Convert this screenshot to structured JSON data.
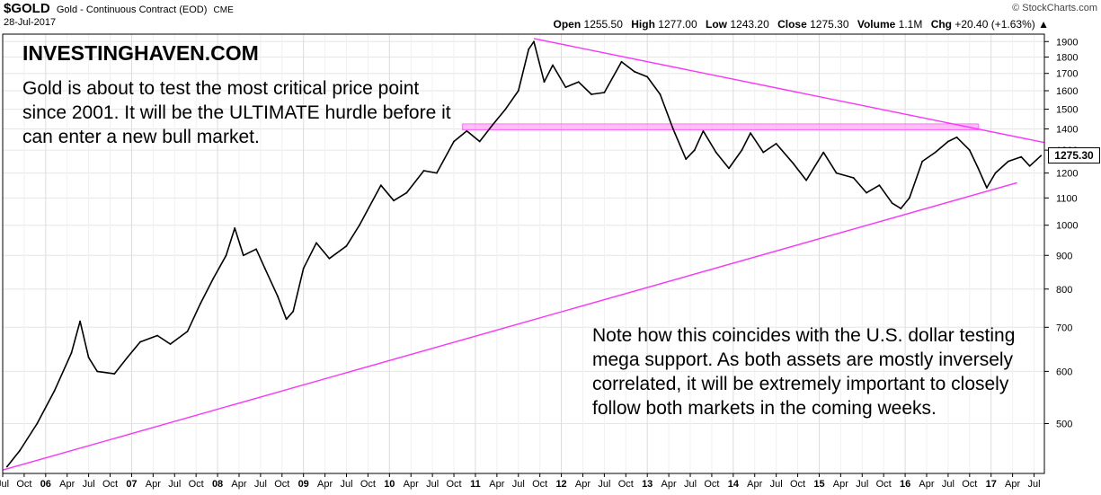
{
  "header": {
    "symbol": "$GOLD",
    "description": "Gold - Continuous Contract (EOD)",
    "exchange": "CME",
    "date": "28-Jul-2017",
    "brand": "© StockCharts.com",
    "open_label": "Open",
    "open": "1255.50",
    "high_label": "High",
    "high": "1277.00",
    "low_label": "Low",
    "low": "1243.20",
    "close_label": "Close",
    "close": "1275.30",
    "volume_label": "Volume",
    "volume": "1.1M",
    "chg_label": "Chg",
    "chg": "+20.40 (+1.63%)",
    "chg_arrow": "▲"
  },
  "annotations": {
    "site": "INVESTINGHAVEN.COM",
    "note1": "Gold is about to test the most critical price point since 2001. It will be the ULTIMATE hurdle before it can enter a new bull market.",
    "note2": "Note how this coincides with the U.S. dollar testing mega support. As both assets are mostly inversely correlated, it will be extremely important to closely follow both markets in the coming weeks."
  },
  "chart_data": {
    "type": "line",
    "title": "",
    "xlabel": "",
    "ylabel": "",
    "ylim": [
      420,
      1950
    ],
    "y_scale": "log",
    "xlim": [
      2005.5,
      2017.62
    ],
    "y_ticks": [
      500,
      600,
      700,
      800,
      900,
      1000,
      1100,
      1200,
      1300,
      1400,
      1500,
      1600,
      1700,
      1800,
      1900
    ],
    "last_price_label": "1275.30",
    "x_tick_labels": [
      {
        "t": 2005.5,
        "label": "Jul"
      },
      {
        "t": 2005.75,
        "label": "Oct"
      },
      {
        "t": 2006.0,
        "label": "06",
        "year": true
      },
      {
        "t": 2006.25,
        "label": "Apr"
      },
      {
        "t": 2006.5,
        "label": "Jul"
      },
      {
        "t": 2006.75,
        "label": "Oct"
      },
      {
        "t": 2007.0,
        "label": "07",
        "year": true
      },
      {
        "t": 2007.25,
        "label": "Apr"
      },
      {
        "t": 2007.5,
        "label": "Jul"
      },
      {
        "t": 2007.75,
        "label": "Oct"
      },
      {
        "t": 2008.0,
        "label": "08",
        "year": true
      },
      {
        "t": 2008.25,
        "label": "Apr"
      },
      {
        "t": 2008.5,
        "label": "Jul"
      },
      {
        "t": 2008.75,
        "label": "Oct"
      },
      {
        "t": 2009.0,
        "label": "09",
        "year": true
      },
      {
        "t": 2009.25,
        "label": "Apr"
      },
      {
        "t": 2009.5,
        "label": "Jul"
      },
      {
        "t": 2009.75,
        "label": "Oct"
      },
      {
        "t": 2010.0,
        "label": "10",
        "year": true
      },
      {
        "t": 2010.25,
        "label": "Apr"
      },
      {
        "t": 2010.5,
        "label": "Jul"
      },
      {
        "t": 2010.75,
        "label": "Oct"
      },
      {
        "t": 2011.0,
        "label": "11",
        "year": true
      },
      {
        "t": 2011.25,
        "label": "Apr"
      },
      {
        "t": 2011.5,
        "label": "Jul"
      },
      {
        "t": 2011.75,
        "label": "Oct"
      },
      {
        "t": 2012.0,
        "label": "12",
        "year": true
      },
      {
        "t": 2012.25,
        "label": "Apr"
      },
      {
        "t": 2012.5,
        "label": "Jul"
      },
      {
        "t": 2012.75,
        "label": "Oct"
      },
      {
        "t": 2013.0,
        "label": "13",
        "year": true
      },
      {
        "t": 2013.25,
        "label": "Apr"
      },
      {
        "t": 2013.5,
        "label": "Jul"
      },
      {
        "t": 2013.75,
        "label": "Oct"
      },
      {
        "t": 2014.0,
        "label": "14",
        "year": true
      },
      {
        "t": 2014.25,
        "label": "Apr"
      },
      {
        "t": 2014.5,
        "label": "Jul"
      },
      {
        "t": 2014.75,
        "label": "Oct"
      },
      {
        "t": 2015.0,
        "label": "15",
        "year": true
      },
      {
        "t": 2015.25,
        "label": "Apr"
      },
      {
        "t": 2015.5,
        "label": "Jul"
      },
      {
        "t": 2015.75,
        "label": "Oct"
      },
      {
        "t": 2016.0,
        "label": "16",
        "year": true
      },
      {
        "t": 2016.25,
        "label": "Apr"
      },
      {
        "t": 2016.5,
        "label": "Jul"
      },
      {
        "t": 2016.75,
        "label": "Oct"
      },
      {
        "t": 2017.0,
        "label": "17",
        "year": true
      },
      {
        "t": 2017.25,
        "label": "Apr"
      },
      {
        "t": 2017.5,
        "label": "Jul"
      }
    ],
    "series": [
      {
        "color": "#000000",
        "points": [
          [
            2005.55,
            430
          ],
          [
            2005.7,
            455
          ],
          [
            2005.9,
            500
          ],
          [
            2006.1,
            560
          ],
          [
            2006.3,
            640
          ],
          [
            2006.4,
            715
          ],
          [
            2006.5,
            630
          ],
          [
            2006.6,
            600
          ],
          [
            2006.8,
            595
          ],
          [
            2006.95,
            630
          ],
          [
            2007.1,
            665
          ],
          [
            2007.3,
            680
          ],
          [
            2007.45,
            660
          ],
          [
            2007.65,
            690
          ],
          [
            2007.8,
            760
          ],
          [
            2007.95,
            830
          ],
          [
            2008.1,
            900
          ],
          [
            2008.2,
            990
          ],
          [
            2008.3,
            900
          ],
          [
            2008.45,
            920
          ],
          [
            2008.55,
            860
          ],
          [
            2008.7,
            780
          ],
          [
            2008.8,
            720
          ],
          [
            2008.88,
            740
          ],
          [
            2009.0,
            860
          ],
          [
            2009.15,
            940
          ],
          [
            2009.3,
            890
          ],
          [
            2009.5,
            930
          ],
          [
            2009.65,
            1000
          ],
          [
            2009.9,
            1150
          ],
          [
            2010.05,
            1090
          ],
          [
            2010.2,
            1120
          ],
          [
            2010.4,
            1210
          ],
          [
            2010.55,
            1200
          ],
          [
            2010.75,
            1340
          ],
          [
            2010.9,
            1390
          ],
          [
            2011.05,
            1340
          ],
          [
            2011.2,
            1420
          ],
          [
            2011.35,
            1500
          ],
          [
            2011.5,
            1600
          ],
          [
            2011.62,
            1850
          ],
          [
            2011.68,
            1900
          ],
          [
            2011.8,
            1650
          ],
          [
            2011.9,
            1750
          ],
          [
            2012.05,
            1620
          ],
          [
            2012.2,
            1650
          ],
          [
            2012.35,
            1580
          ],
          [
            2012.5,
            1590
          ],
          [
            2012.7,
            1770
          ],
          [
            2012.85,
            1710
          ],
          [
            2013.0,
            1680
          ],
          [
            2013.15,
            1580
          ],
          [
            2013.3,
            1400
          ],
          [
            2013.45,
            1260
          ],
          [
            2013.55,
            1300
          ],
          [
            2013.65,
            1390
          ],
          [
            2013.8,
            1290
          ],
          [
            2013.95,
            1220
          ],
          [
            2014.1,
            1300
          ],
          [
            2014.2,
            1380
          ],
          [
            2014.35,
            1290
          ],
          [
            2014.5,
            1330
          ],
          [
            2014.7,
            1240
          ],
          [
            2014.85,
            1170
          ],
          [
            2015.05,
            1290
          ],
          [
            2015.2,
            1200
          ],
          [
            2015.4,
            1180
          ],
          [
            2015.55,
            1120
          ],
          [
            2015.7,
            1150
          ],
          [
            2015.85,
            1080
          ],
          [
            2015.95,
            1060
          ],
          [
            2016.05,
            1100
          ],
          [
            2016.2,
            1250
          ],
          [
            2016.35,
            1290
          ],
          [
            2016.5,
            1340
          ],
          [
            2016.6,
            1360
          ],
          [
            2016.75,
            1300
          ],
          [
            2016.85,
            1220
          ],
          [
            2016.95,
            1140
          ],
          [
            2017.05,
            1200
          ],
          [
            2017.2,
            1250
          ],
          [
            2017.35,
            1270
          ],
          [
            2017.45,
            1230
          ],
          [
            2017.58,
            1275
          ]
        ]
      }
    ],
    "overlays": {
      "upper_trendline": {
        "color": "#ff33ff",
        "from": [
          2011.68,
          1920
        ],
        "to": [
          2017.62,
          1335
        ]
      },
      "lower_trendline": {
        "color": "#ff33ff",
        "from": [
          2005.5,
          425
        ],
        "to": [
          2017.3,
          1160
        ]
      },
      "resistance_band": {
        "color": "#ff88ee",
        "x_from": 2010.85,
        "x_to": 2016.85,
        "y_low": 1395,
        "y_high": 1425
      }
    }
  }
}
